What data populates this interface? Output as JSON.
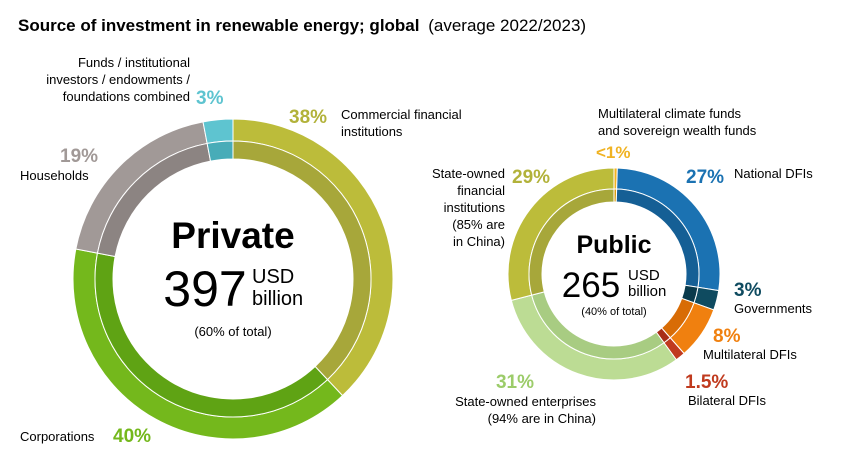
{
  "title": {
    "main": "Source of investment in renewable energy; global",
    "sub": "(average 2022/2023)"
  },
  "chart_data": [
    {
      "type": "donut",
      "name": "private",
      "center_label": "Private",
      "total_value": "397",
      "unit_line1": "USD",
      "unit_line2": "billion",
      "share_note": "(60% of total)",
      "slices": [
        {
          "name": "Commercial financial institutions",
          "percent": 38,
          "percent_label": "38%",
          "label_lines": [
            "Commercial financial",
            "institutions"
          ],
          "color": "#bcbc3a",
          "inner_color": "#a7a73a"
        },
        {
          "name": "Corporations",
          "percent": 40,
          "percent_label": "40%",
          "label_lines": [
            "Corporations"
          ],
          "color": "#74b81c",
          "inner_color": "#5fa314"
        },
        {
          "name": "Households",
          "percent": 19,
          "percent_label": "19%",
          "label_lines": [
            "Households"
          ],
          "color": "#a19997",
          "inner_color": "#8c8482"
        },
        {
          "name": "Funds / institutional investors / endowments / foundations combined",
          "percent": 3,
          "percent_label": "3%",
          "label_lines": [
            "Funds / institutional",
            "investors / endowments /",
            "foundations combined"
          ],
          "color": "#5ec4d0",
          "inner_color": "#48acb8"
        }
      ]
    },
    {
      "type": "donut",
      "name": "public",
      "center_label": "Public",
      "total_value": "265",
      "unit_line1": "USD",
      "unit_line2": "billion",
      "share_note": "(40% of total)",
      "slices": [
        {
          "name": "Multilateral climate funds and sovereign wealth funds",
          "percent": 0.5,
          "percent_label": "<1%",
          "label_lines": [
            "Multilateral climate funds",
            "and sovereign wealth funds"
          ],
          "color": "#f0b323",
          "inner_color": "#d99d12"
        },
        {
          "name": "National DFIs",
          "percent": 27,
          "percent_label": "27%",
          "label_lines": [
            "National DFIs"
          ],
          "color": "#1b72b2",
          "inner_color": "#155f95"
        },
        {
          "name": "Governments",
          "percent": 3,
          "percent_label": "3%",
          "label_lines": [
            "Governments"
          ],
          "color": "#0f4b60",
          "inner_color": "#0a3a4b"
        },
        {
          "name": "Multilateral DFIs",
          "percent": 8,
          "percent_label": "8%",
          "label_lines": [
            "Multilateral DFIs"
          ],
          "color": "#f0800f",
          "inner_color": "#d86c06"
        },
        {
          "name": "Bilateral DFIs",
          "percent": 1.5,
          "percent_label": "1.5%",
          "label_lines": [
            "Bilateral DFIs"
          ],
          "color": "#c03a1e",
          "inner_color": "#a82e16"
        },
        {
          "name": "State-owned enterprises",
          "percent": 31,
          "percent_label": "31%",
          "label_lines": [
            "State-owned enterprises",
            "(94% are in China)"
          ],
          "color": "#bcdc94",
          "inner_color": "#a8cc82"
        },
        {
          "name": "State-owned financial institutions",
          "percent": 29,
          "percent_label": "29%",
          "label_lines": [
            "State-owned",
            "financial",
            "institutions",
            "(85% are",
            "in China)"
          ],
          "color": "#bcbc3a",
          "inner_color": "#a7a73a"
        }
      ]
    }
  ]
}
